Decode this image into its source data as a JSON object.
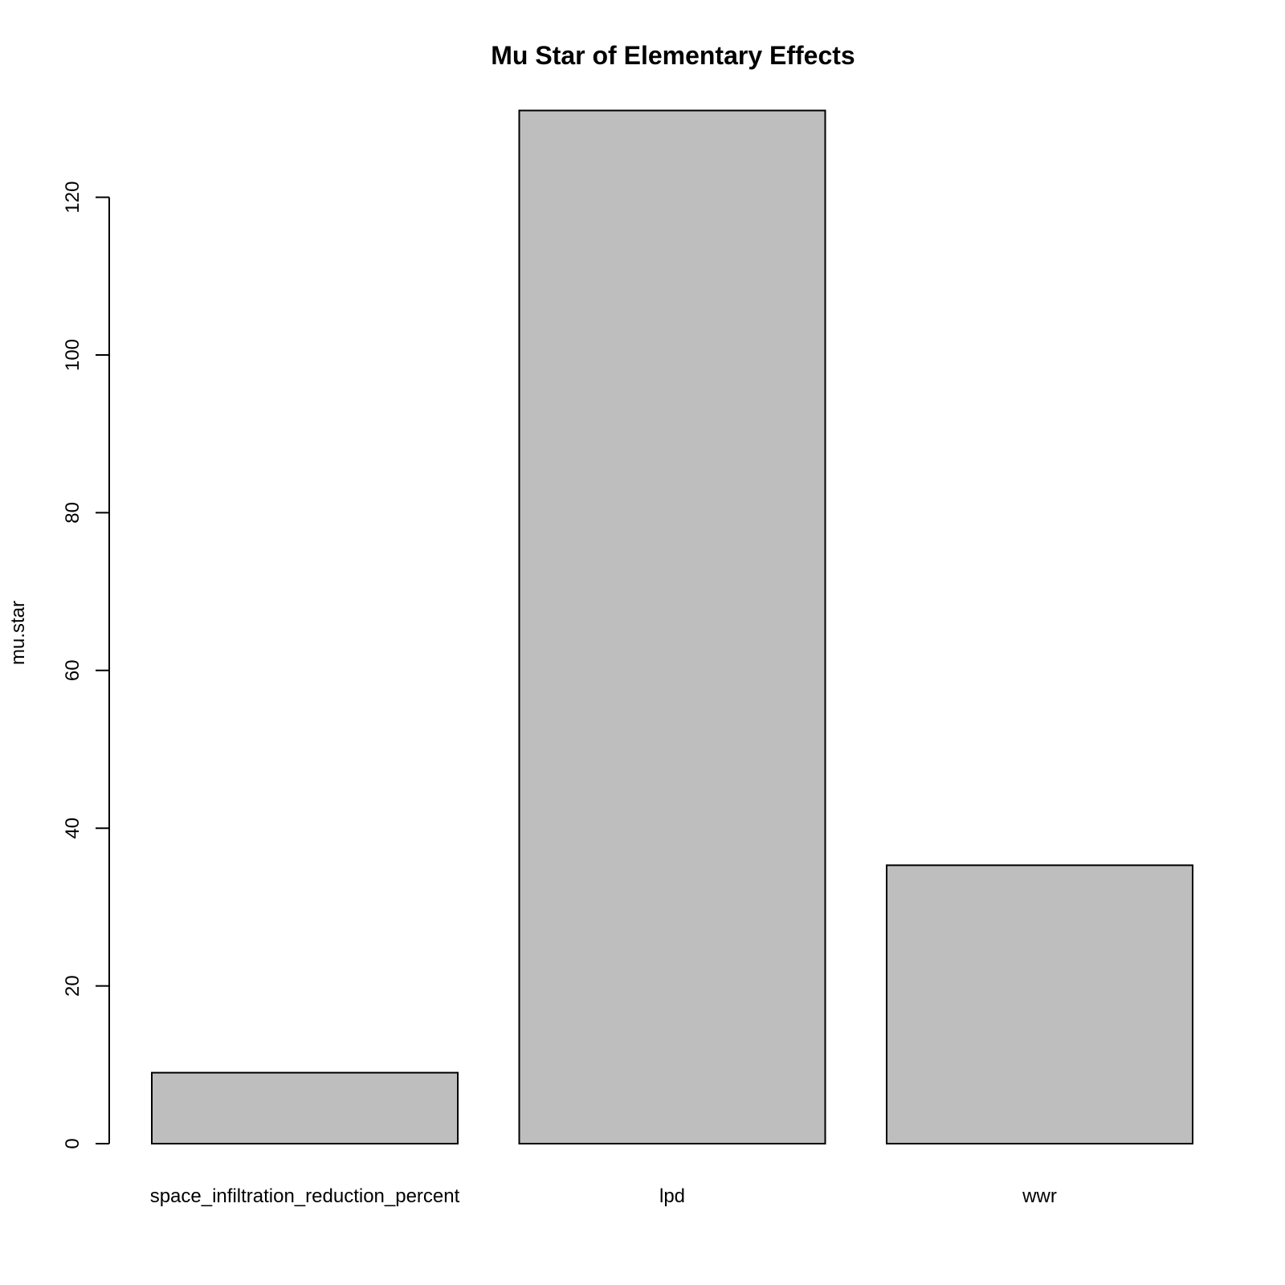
{
  "chart_data": {
    "type": "bar",
    "title": "Mu Star of Elementary Effects",
    "xlabel": "",
    "ylabel": "mu.star",
    "categories": [
      "space_infiltration_reduction_percent",
      "lpd",
      "wwr"
    ],
    "values": [
      9.0,
      131.0,
      35.3
    ],
    "yticks": [
      0,
      20,
      40,
      60,
      80,
      100,
      120
    ],
    "ylim": [
      0,
      131
    ],
    "colors": {
      "bar_fill": "#bebebe",
      "bar_stroke": "#000000"
    },
    "grid": false,
    "legend": "none"
  }
}
